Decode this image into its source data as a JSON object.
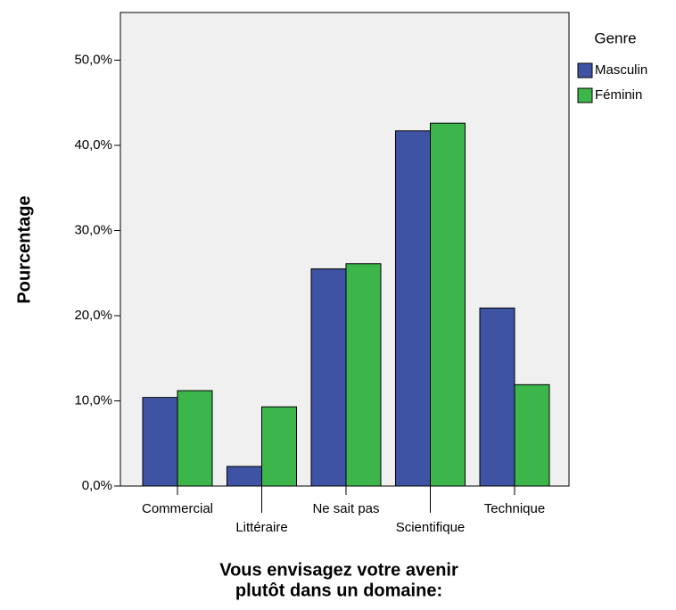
{
  "chart_data": {
    "type": "bar",
    "categories": [
      "Commercial",
      "Littéraire",
      "Ne sait pas",
      "Scientifique",
      "Technique"
    ],
    "series": [
      {
        "name": "Masculin",
        "color": "#3e53a4",
        "values": [
          10.4,
          2.3,
          25.5,
          41.7,
          20.9
        ]
      },
      {
        "name": "Féminin",
        "color": "#3cb54a",
        "values": [
          11.2,
          9.3,
          26.1,
          42.6,
          11.9
        ]
      }
    ],
    "ylim": [
      0,
      55.6
    ],
    "yticks": [
      {
        "value": 0,
        "label": "0,0%"
      },
      {
        "value": 10,
        "label": "10,0%"
      },
      {
        "value": 20,
        "label": "20,0%"
      },
      {
        "value": 30,
        "label": "30,0%"
      },
      {
        "value": 40,
        "label": "40,0%"
      },
      {
        "value": 50,
        "label": "50,0%"
      }
    ],
    "y_label": "Pourcentage",
    "x_label": [
      "Vous envisagez votre avenir",
      "plutôt dans un domaine:"
    ],
    "legend_title": "Genre",
    "legend": "right"
  }
}
